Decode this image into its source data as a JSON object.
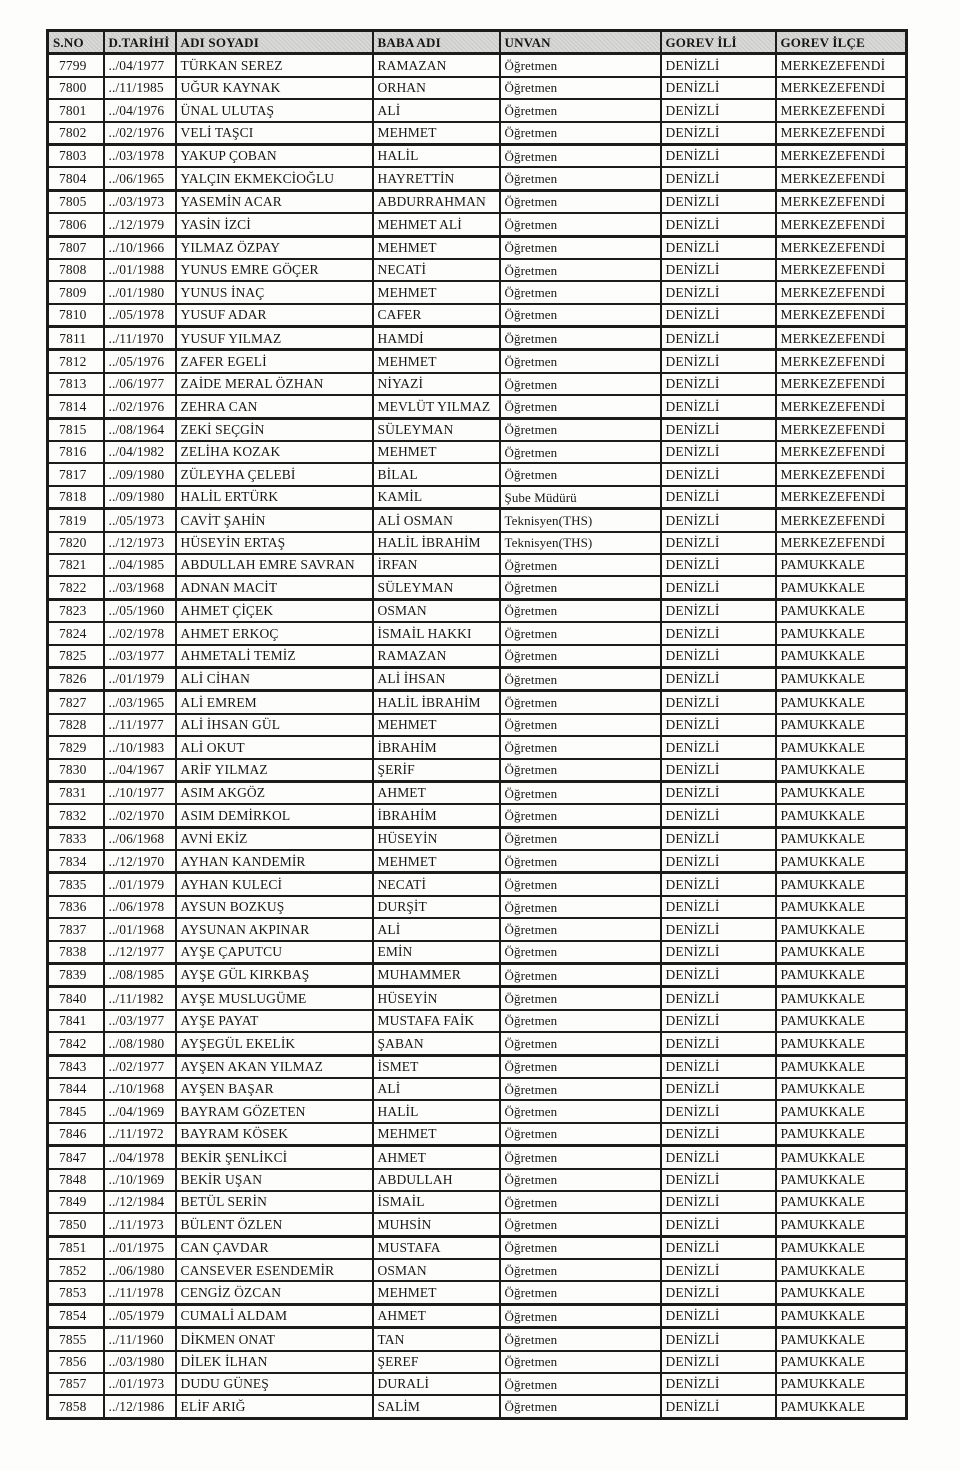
{
  "colors": {
    "ink": "#161616",
    "paper": "#fdfdfc",
    "header_bg": "#d7d7d5",
    "border": "#1c1c1c"
  },
  "table": {
    "columns": [
      "S.NO",
      "D.TARİHİ",
      "ADI SOYADI",
      "BABA ADI",
      "UNVAN",
      "GOREV İLİ",
      "GOREV İLÇE"
    ],
    "rows": [
      [
        "7799",
        "../04/1977",
        "TÜRKAN SEREZ",
        "RAMAZAN",
        "Öğretmen",
        "DENİZLİ",
        "MERKEZEFENDİ"
      ],
      [
        "7800",
        "../11/1985",
        "UĞUR KAYNAK",
        "ORHAN",
        "Öğretmen",
        "DENİZLİ",
        "MERKEZEFENDİ"
      ],
      [
        "7801",
        "../04/1976",
        "ÜNAL ULUTAŞ",
        "ALİ",
        "Öğretmen",
        "DENİZLİ",
        "MERKEZEFENDİ"
      ],
      [
        "7802",
        "../02/1976",
        "VELİ TAŞCI",
        "MEHMET",
        "Öğretmen",
        "DENİZLİ",
        "MERKEZEFENDİ"
      ],
      [
        "7803",
        "../03/1978",
        "YAKUP ÇOBAN",
        "HALİL",
        "Öğretmen",
        "DENİZLİ",
        "MERKEZEFENDİ"
      ],
      [
        "7804",
        "../06/1965",
        "YALÇIN EKMEKCİOĞLU",
        "HAYRETTİN",
        "Öğretmen",
        "DENİZLİ",
        "MERKEZEFENDİ"
      ],
      [
        "7805",
        "../03/1973",
        "YASEMİN ACAR",
        "ABDURRAHMAN",
        "Öğretmen",
        "DENİZLİ",
        "MERKEZEFENDİ"
      ],
      [
        "7806",
        "../12/1979",
        "YASİN İZCİ",
        "MEHMET ALİ",
        "Öğretmen",
        "DENİZLİ",
        "MERKEZEFENDİ"
      ],
      [
        "7807",
        "../10/1966",
        "YILMAZ ÖZPAY",
        "MEHMET",
        "Öğretmen",
        "DENİZLİ",
        "MERKEZEFENDİ"
      ],
      [
        "7808",
        "../01/1988",
        "YUNUS EMRE GÖÇER",
        "NECATİ",
        "Öğretmen",
        "DENİZLİ",
        "MERKEZEFENDİ"
      ],
      [
        "7809",
        "../01/1980",
        "YUNUS İNAÇ",
        "MEHMET",
        "Öğretmen",
        "DENİZLİ",
        "MERKEZEFENDİ"
      ],
      [
        "7810",
        "../05/1978",
        "YUSUF ADAR",
        "CAFER",
        "Öğretmen",
        "DENİZLİ",
        "MERKEZEFENDİ"
      ],
      [
        "7811",
        "../11/1970",
        "YUSUF YILMAZ",
        "HAMDİ",
        "Öğretmen",
        "DENİZLİ",
        "MERKEZEFENDİ"
      ],
      [
        "7812",
        "../05/1976",
        "ZAFER EGELİ",
        "MEHMET",
        "Öğretmen",
        "DENİZLİ",
        "MERKEZEFENDİ"
      ],
      [
        "7813",
        "../06/1977",
        "ZAİDE MERAL ÖZHAN",
        "NİYAZİ",
        "Öğretmen",
        "DENİZLİ",
        "MERKEZEFENDİ"
      ],
      [
        "7814",
        "../02/1976",
        "ZEHRA CAN",
        "MEVLÜT YILMAZ",
        "Öğretmen",
        "DENİZLİ",
        "MERKEZEFENDİ"
      ],
      [
        "7815",
        "../08/1964",
        "ZEKİ SEÇGİN",
        "SÜLEYMAN",
        "Öğretmen",
        "DENİZLİ",
        "MERKEZEFENDİ"
      ],
      [
        "7816",
        "../04/1982",
        "ZELİHA KOZAK",
        "MEHMET",
        "Öğretmen",
        "DENİZLİ",
        "MERKEZEFENDİ"
      ],
      [
        "7817",
        "../09/1980",
        "ZÜLEYHA ÇELEBİ",
        "BİLAL",
        "Öğretmen",
        "DENİZLİ",
        "MERKEZEFENDİ"
      ],
      [
        "7818",
        "../09/1980",
        "HALİL ERTÜRK",
        "KAMİL",
        "Şube Müdürü",
        "DENİZLİ",
        "MERKEZEFENDİ"
      ],
      [
        "7819",
        "../05/1973",
        "CAVİT ŞAHİN",
        "ALİ OSMAN",
        "Teknisyen(THS)",
        "DENİZLİ",
        "MERKEZEFENDİ"
      ],
      [
        "7820",
        "../12/1973",
        "HÜSEYİN ERTAŞ",
        "HALİL İBRAHİM",
        "Teknisyen(THS)",
        "DENİZLİ",
        "MERKEZEFENDİ"
      ],
      [
        "7821",
        "../04/1985",
        "ABDULLAH EMRE SAVRAN",
        "İRFAN",
        "Öğretmen",
        "DENİZLİ",
        "PAMUKKALE"
      ],
      [
        "7822",
        "../03/1968",
        "ADNAN MACİT",
        "SÜLEYMAN",
        "Öğretmen",
        "DENİZLİ",
        "PAMUKKALE"
      ],
      [
        "7823",
        "../05/1960",
        "AHMET ÇİÇEK",
        "OSMAN",
        "Öğretmen",
        "DENİZLİ",
        "PAMUKKALE"
      ],
      [
        "7824",
        "../02/1978",
        "AHMET ERKOÇ",
        "İSMAİL HAKKI",
        "Öğretmen",
        "DENİZLİ",
        "PAMUKKALE"
      ],
      [
        "7825",
        "../03/1977",
        "AHMETALİ TEMİZ",
        "RAMAZAN",
        "Öğretmen",
        "DENİZLİ",
        "PAMUKKALE"
      ],
      [
        "7826",
        "../01/1979",
        "ALİ CİHAN",
        "ALİ İHSAN",
        "Öğretmen",
        "DENİZLİ",
        "PAMUKKALE"
      ],
      [
        "7827",
        "../03/1965",
        "ALİ EMREM",
        "HALİL İBRAHİM",
        "Öğretmen",
        "DENİZLİ",
        "PAMUKKALE"
      ],
      [
        "7828",
        "../11/1977",
        "ALİ İHSAN GÜL",
        "MEHMET",
        "Öğretmen",
        "DENİZLİ",
        "PAMUKKALE"
      ],
      [
        "7829",
        "../10/1983",
        "ALİ OKUT",
        "İBRAHİM",
        "Öğretmen",
        "DENİZLİ",
        "PAMUKKALE"
      ],
      [
        "7830",
        "../04/1967",
        "ARİF YILMAZ",
        "ŞERİF",
        "Öğretmen",
        "DENİZLİ",
        "PAMUKKALE"
      ],
      [
        "7831",
        "../10/1977",
        "ASIM AKGÖZ",
        "AHMET",
        "Öğretmen",
        "DENİZLİ",
        "PAMUKKALE"
      ],
      [
        "7832",
        "../02/1970",
        "ASIM DEMİRKOL",
        "İBRAHİM",
        "Öğretmen",
        "DENİZLİ",
        "PAMUKKALE"
      ],
      [
        "7833",
        "../06/1968",
        "AVNİ EKİZ",
        "HÜSEYİN",
        "Öğretmen",
        "DENİZLİ",
        "PAMUKKALE"
      ],
      [
        "7834",
        "../12/1970",
        "AYHAN KANDEMİR",
        "MEHMET",
        "Öğretmen",
        "DENİZLİ",
        "PAMUKKALE"
      ],
      [
        "7835",
        "../01/1979",
        "AYHAN KULECİ",
        "NECATİ",
        "Öğretmen",
        "DENİZLİ",
        "PAMUKKALE"
      ],
      [
        "7836",
        "../06/1978",
        "AYSUN BOZKUŞ",
        "DURŞİT",
        "Öğretmen",
        "DENİZLİ",
        "PAMUKKALE"
      ],
      [
        "7837",
        "../01/1968",
        "AYSUNAN AKPINAR",
        "ALİ",
        "Öğretmen",
        "DENİZLİ",
        "PAMUKKALE"
      ],
      [
        "7838",
        "../12/1977",
        "AYŞE ÇAPUTCU",
        "EMİN",
        "Öğretmen",
        "DENİZLİ",
        "PAMUKKALE"
      ],
      [
        "7839",
        "../08/1985",
        "AYŞE GÜL KIRKBAŞ",
        "MUHAMMER",
        "Öğretmen",
        "DENİZLİ",
        "PAMUKKALE"
      ],
      [
        "7840",
        "../11/1982",
        "AYŞE MUSLUGÜME",
        "HÜSEYİN",
        "Öğretmen",
        "DENİZLİ",
        "PAMUKKALE"
      ],
      [
        "7841",
        "../03/1977",
        "AYŞE PAYAT",
        "MUSTAFA FAİK",
        "Öğretmen",
        "DENİZLİ",
        "PAMUKKALE"
      ],
      [
        "7842",
        "../08/1980",
        "AYŞEGÜL EKELİK",
        "ŞABAN",
        "Öğretmen",
        "DENİZLİ",
        "PAMUKKALE"
      ],
      [
        "7843",
        "../02/1977",
        "AYŞEN AKAN YILMAZ",
        "İSMET",
        "Öğretmen",
        "DENİZLİ",
        "PAMUKKALE"
      ],
      [
        "7844",
        "../10/1968",
        "AYŞEN BAŞAR",
        "ALİ",
        "Öğretmen",
        "DENİZLİ",
        "PAMUKKALE"
      ],
      [
        "7845",
        "../04/1969",
        "BAYRAM GÖZETEN",
        "HALİL",
        "Öğretmen",
        "DENİZLİ",
        "PAMUKKALE"
      ],
      [
        "7846",
        "../11/1972",
        "BAYRAM KÖSEK",
        "MEHMET",
        "Öğretmen",
        "DENİZLİ",
        "PAMUKKALE"
      ],
      [
        "7847",
        "../04/1978",
        "BEKİR ŞENLİKCİ",
        "AHMET",
        "Öğretmen",
        "DENİZLİ",
        "PAMUKKALE"
      ],
      [
        "7848",
        "../10/1969",
        "BEKİR UŞAN",
        "ABDULLAH",
        "Öğretmen",
        "DENİZLİ",
        "PAMUKKALE"
      ],
      [
        "7849",
        "../12/1984",
        "BETÜL SERİN",
        "İSMAİL",
        "Öğretmen",
        "DENİZLİ",
        "PAMUKKALE"
      ],
      [
        "7850",
        "../11/1973",
        "BÜLENT ÖZLEN",
        "MUHSİN",
        "Öğretmen",
        "DENİZLİ",
        "PAMUKKALE"
      ],
      [
        "7851",
        "../01/1975",
        "CAN ÇAVDAR",
        "MUSTAFA",
        "Öğretmen",
        "DENİZLİ",
        "PAMUKKALE"
      ],
      [
        "7852",
        "../06/1980",
        "CANSEVER ESENDEMİR",
        "OSMAN",
        "Öğretmen",
        "DENİZLİ",
        "PAMUKKALE"
      ],
      [
        "7853",
        "../11/1978",
        "CENGİZ ÖZCAN",
        "MEHMET",
        "Öğretmen",
        "DENİZLİ",
        "PAMUKKALE"
      ],
      [
        "7854",
        "../05/1979",
        "CUMALİ ALDAM",
        "AHMET",
        "Öğretmen",
        "DENİZLİ",
        "PAMUKKALE"
      ],
      [
        "7855",
        "../11/1960",
        "DİKMEN ONAT",
        "TAN",
        "Öğretmen",
        "DENİZLİ",
        "PAMUKKALE"
      ],
      [
        "7856",
        "../03/1980",
        "DİLEK İLHAN",
        "ŞEREF",
        "Öğretmen",
        "DENİZLİ",
        "PAMUKKALE"
      ],
      [
        "7857",
        "../01/1973",
        "DUDU GÜNEŞ",
        "DURALİ",
        "Öğretmen",
        "DENİZLİ",
        "PAMUKKALE"
      ],
      [
        "7858",
        "../12/1986",
        "ELİF ARIĞ",
        "SALİM",
        "Öğretmen",
        "DENİZLİ",
        "PAMUKKALE"
      ]
    ]
  }
}
